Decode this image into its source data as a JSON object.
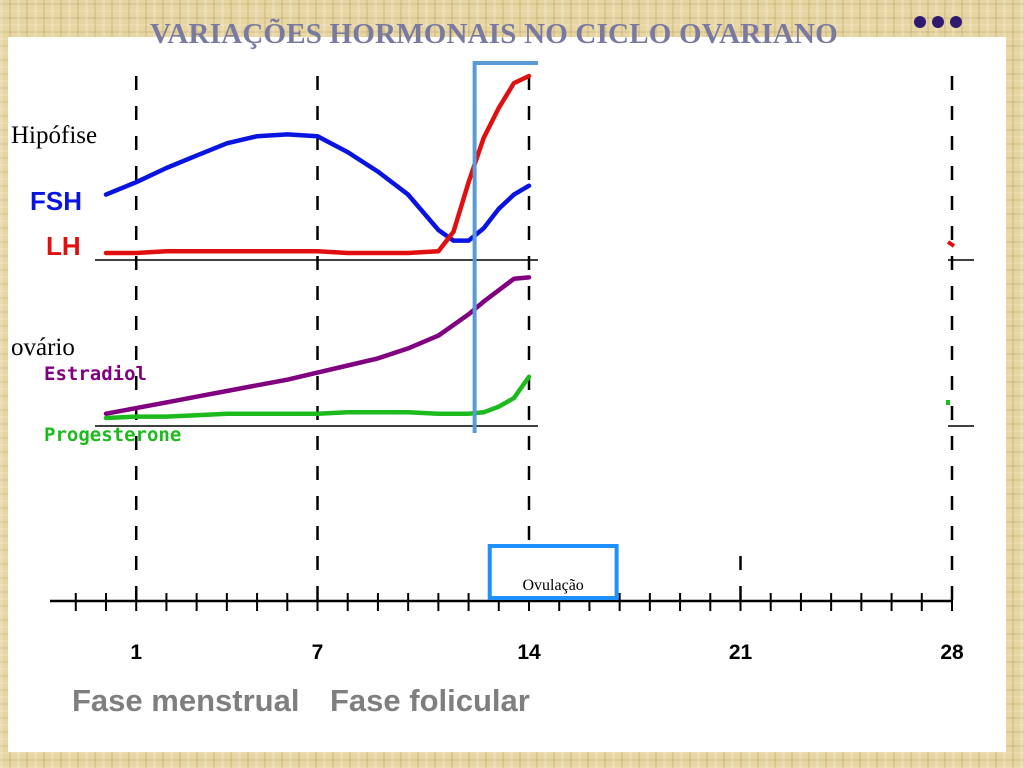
{
  "slide": {
    "title": "VARIAÇÕES HORMONAIS NO CICLO OVARIANO",
    "side_labels": {
      "hipofise": "Hipófise",
      "ovario": "ovário"
    },
    "phases": [
      {
        "label": "Fase menstrual"
      },
      {
        "label": "Fase folicular"
      }
    ],
    "colors": {
      "background": "#e7d5a2",
      "title": "#7a7aa0",
      "dots": "#2e1a6e",
      "phase_text": "#7f7f7f"
    }
  },
  "chart_data": {
    "type": "line",
    "x_ticks": [
      "1",
      "7",
      "14",
      "21",
      "28"
    ],
    "xlim": [
      0,
      28
    ],
    "annotation": "Ovulação",
    "annotation_x": [
      12.7,
      16.9
    ],
    "marker_day": 12.2,
    "panels": [
      {
        "id": "hipofise",
        "series": [
          {
            "name": "FSH",
            "color": "#0a14e0",
            "x": [
              0,
              1,
              2,
              3,
              4,
              5,
              6,
              7,
              8,
              9,
              10,
              11,
              11.5,
              12,
              12.5,
              13,
              13.5,
              14
            ],
            "y": [
              0.33,
              0.4,
              0.48,
              0.55,
              0.62,
              0.66,
              0.67,
              0.66,
              0.57,
              0.46,
              0.33,
              0.13,
              0.07,
              0.07,
              0.14,
              0.25,
              0.33,
              0.38
            ]
          },
          {
            "name": "LH",
            "color": "#e01010",
            "x": [
              0,
              1,
              2,
              3,
              4,
              5,
              6,
              7,
              8,
              9,
              10,
              11,
              11.5,
              12,
              12.5,
              13,
              13.5,
              14
            ],
            "y": [
              0.0,
              0.0,
              0.01,
              0.01,
              0.01,
              0.01,
              0.01,
              0.01,
              0.0,
              0.0,
              0.0,
              0.01,
              0.12,
              0.4,
              0.65,
              0.82,
              0.96,
              1.0
            ]
          }
        ]
      },
      {
        "id": "ovario",
        "series": [
          {
            "name": "Estradiol",
            "color": "#800080",
            "x": [
              0,
              1,
              2,
              3,
              4,
              5,
              6,
              7,
              8,
              9,
              10,
              11,
              12,
              12.5,
              13,
              13.5,
              14
            ],
            "y": [
              0.03,
              0.07,
              0.11,
              0.15,
              0.19,
              0.23,
              0.27,
              0.32,
              0.37,
              0.42,
              0.49,
              0.58,
              0.73,
              0.82,
              0.9,
              0.98,
              0.99
            ]
          },
          {
            "name": "Progesterone",
            "color": "#1dba1d",
            "x": [
              0,
              1,
              2,
              3,
              4,
              5,
              6,
              7,
              8,
              9,
              10,
              11,
              12,
              12.5,
              13,
              13.5,
              14
            ],
            "y": [
              0.0,
              0.01,
              0.01,
              0.02,
              0.03,
              0.03,
              0.03,
              0.03,
              0.04,
              0.04,
              0.04,
              0.03,
              0.03,
              0.04,
              0.08,
              0.14,
              0.29
            ]
          }
        ]
      }
    ]
  }
}
